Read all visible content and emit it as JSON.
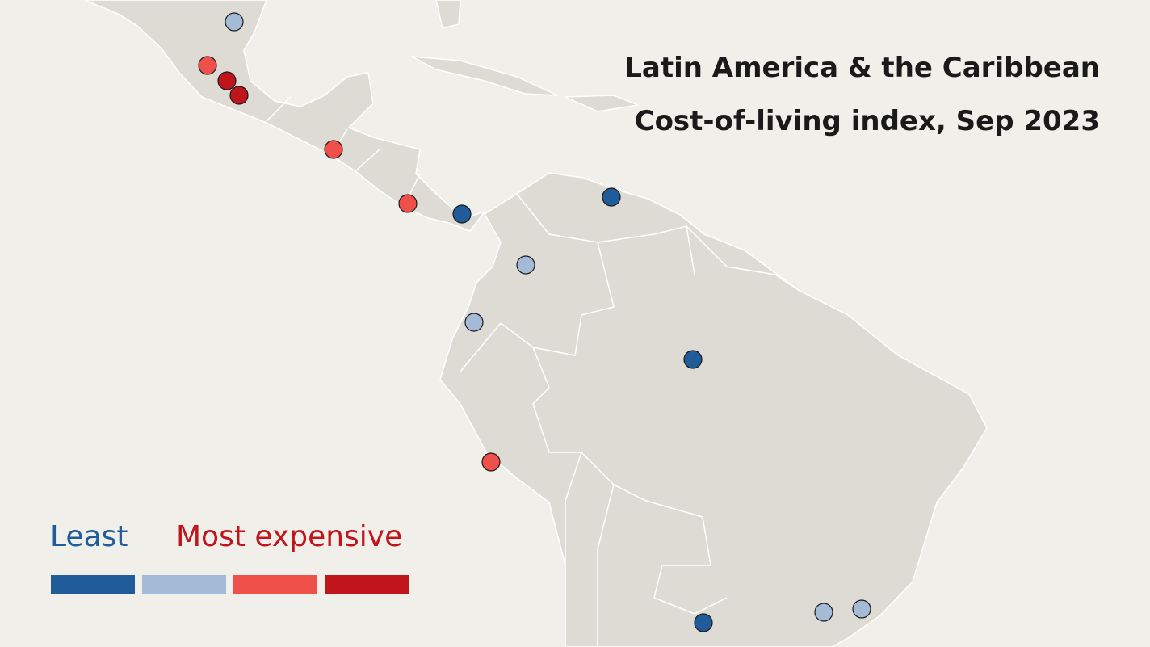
{
  "title": "Latin America & the Caribbean",
  "subtitle": "Cost-of-living index, Sep 2023",
  "legend": {
    "least": "Least",
    "most": "Most expensive",
    "colors": [
      "#1f5c99",
      "#a3bbd6",
      "#f0504a",
      "#c0161b"
    ]
  },
  "cities": [
    {
      "color": "#a3bbd6"
    },
    {
      "color": "#f0504a"
    },
    {
      "color": "#c0161b"
    },
    {
      "color": "#c0161b"
    },
    {
      "color": "#f0504a"
    },
    {
      "color": "#f0504a"
    },
    {
      "color": "#1f5c99"
    },
    {
      "color": "#1f5c99"
    },
    {
      "color": "#a3bbd6"
    },
    {
      "color": "#a3bbd6"
    },
    {
      "color": "#1f5c99"
    },
    {
      "color": "#f0504a"
    },
    {
      "color": "#1f5c99"
    },
    {
      "color": "#a3bbd6"
    },
    {
      "color": "#a3bbd6"
    }
  ]
}
